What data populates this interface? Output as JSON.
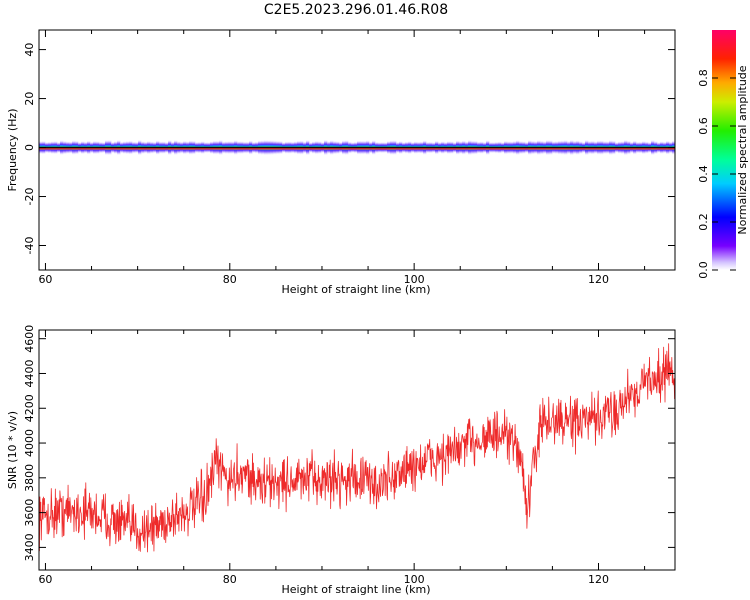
{
  "title": "C2E5.2023.296.01.46.R08",
  "colors": {
    "signal": "#ee2a2a",
    "frame": "#000000"
  },
  "chart_data": [
    {
      "type": "heatmap",
      "xlabel": "Height of straight line (km)",
      "ylabel": "Frequency (Hz)",
      "xlim": [
        59.3,
        128.3
      ],
      "ylim": [
        -50,
        48
      ],
      "xticks": [
        60,
        80,
        100,
        120
      ],
      "xtick_labels": [
        "60",
        "80",
        "100",
        "120"
      ],
      "yticks": [
        -40,
        -20,
        0,
        20,
        40
      ],
      "ytick_labels": [
        "-40",
        "-20",
        "0",
        "20",
        "40"
      ],
      "colorbar": {
        "label": "Normalized spectral amplitude",
        "range": [
          0,
          1
        ],
        "ticks": [
          0.0,
          0.2,
          0.4,
          0.6,
          0.8
        ],
        "tick_labels": [
          "0.0",
          "0.2",
          "0.4",
          "0.6",
          "0.8"
        ],
        "colormap": "rainbow"
      },
      "peak_frequency_hz": 0,
      "grid": false
    },
    {
      "type": "line",
      "xlabel": "Height of straight line (km)",
      "ylabel": "SNR (10 * v/v)",
      "xlim": [
        59.3,
        128.3
      ],
      "ylim": [
        3270,
        4650
      ],
      "xticks": [
        60,
        80,
        100,
        120
      ],
      "xtick_labels": [
        "60",
        "80",
        "100",
        "120"
      ],
      "yticks": [
        3400,
        3600,
        3800,
        4000,
        4200,
        4400,
        4600
      ],
      "ytick_labels": [
        "3400",
        "3600",
        "3800",
        "4000",
        "4200",
        "4400",
        "4600"
      ],
      "grid": false,
      "series": [
        {
          "x": [
            59.3,
            62,
            65,
            68,
            70,
            72,
            74,
            76,
            77.5,
            78.5,
            80,
            81.5,
            83,
            86,
            90,
            94,
            96,
            97.5,
            100,
            104,
            106,
            108,
            110,
            111.5,
            112.3,
            113.5,
            115,
            118,
            120,
            122,
            124,
            126,
            128.3
          ],
          "y": [
            3580,
            3610,
            3600,
            3540,
            3500,
            3520,
            3580,
            3620,
            3700,
            3880,
            3780,
            3850,
            3760,
            3780,
            3790,
            3800,
            3750,
            3800,
            3870,
            3940,
            4000,
            4050,
            4020,
            3960,
            3600,
            4080,
            4130,
            4120,
            4130,
            4200,
            4310,
            4380,
            4420
          ],
          "noise_amplitude": 110
        }
      ]
    }
  ]
}
